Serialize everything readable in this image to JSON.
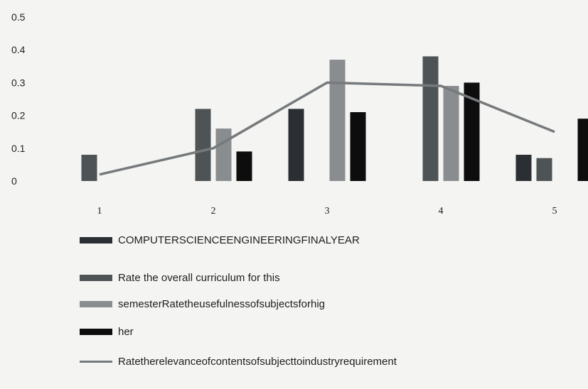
{
  "chart_data": {
    "type": "bar",
    "categories": [
      "1",
      "2",
      "3",
      "4",
      "5"
    ],
    "y_ticks": [
      "0.5",
      "0.4",
      "0.3",
      "0.2",
      "0.1",
      "0"
    ],
    "ylim": [
      0,
      0.5
    ],
    "grid": false,
    "legend_position": "bottom",
    "series": [
      {
        "name": "COMPUTERSCIENCEENGINEERINGFINALYEAR",
        "kind": "bar",
        "color": "#2b2f33",
        "values": [
          0,
          0,
          0.22,
          0,
          0.08
        ]
      },
      {
        "name": "Rate the overall curriculum for this",
        "kind": "bar",
        "color": "#4e5356",
        "values": [
          0.08,
          0.22,
          0,
          0.38,
          0.07
        ]
      },
      {
        "name": "semesterRatetheusefulnessofsubjectsforhig",
        "kind": "bar",
        "color": "#8a8d8f",
        "values": [
          0,
          0.16,
          0.37,
          0.29,
          0
        ]
      },
      {
        "name": "her",
        "kind": "bar",
        "color": "#0d0d0d",
        "values": [
          0,
          0.09,
          0.21,
          0.3,
          0.19
        ]
      },
      {
        "name": "Ratetherelevanceofcontentsofsubjecttoindustryrequirement",
        "kind": "line",
        "color": "#767a7c",
        "values": [
          0.02,
          0.1,
          0.3,
          0.29,
          0.15
        ]
      }
    ]
  }
}
